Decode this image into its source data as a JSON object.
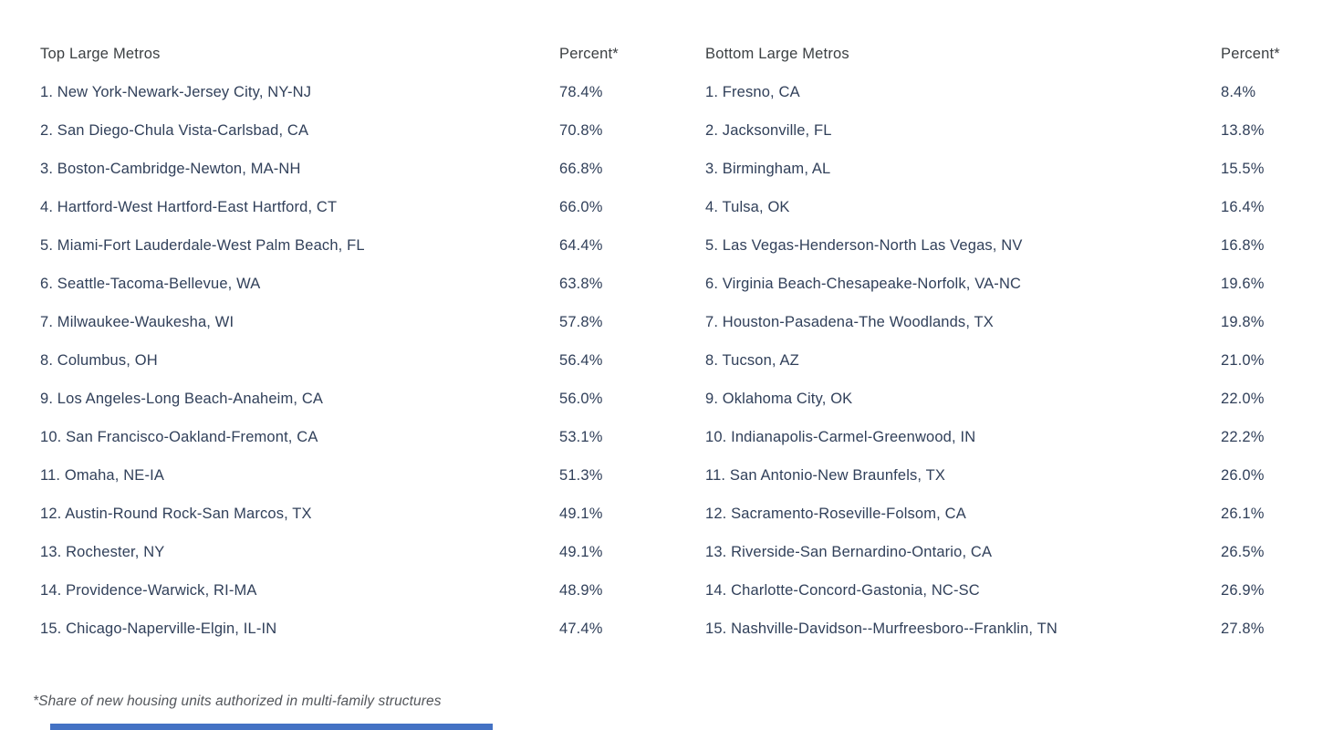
{
  "colors": {
    "background": "#ffffff",
    "row_text": "#31405a",
    "header_text": "#3c4043",
    "footnote_text": "#53565b",
    "accent_bar": "#4472c4"
  },
  "footnote": "*Share of new housing units authorized in multi-family structures",
  "tables": [
    {
      "header_metros": "Top Large Metros",
      "header_percent": "Percent*",
      "rows": [
        {
          "label": "1. New York-Newark-Jersey City, NY-NJ",
          "percent": "78.4%"
        },
        {
          "label": "2. San Diego-Chula Vista-Carlsbad, CA",
          "percent": "70.8%"
        },
        {
          "label": "3. Boston-Cambridge-Newton, MA-NH",
          "percent": "66.8%"
        },
        {
          "label": "4. Hartford-West Hartford-East Hartford, CT",
          "percent": "66.0%"
        },
        {
          "label": "5. Miami-Fort Lauderdale-West Palm Beach, FL",
          "percent": "64.4%"
        },
        {
          "label": "6. Seattle-Tacoma-Bellevue, WA",
          "percent": "63.8%"
        },
        {
          "label": "7. Milwaukee-Waukesha, WI",
          "percent": "57.8%"
        },
        {
          "label": "8. Columbus, OH",
          "percent": "56.4%"
        },
        {
          "label": "9. Los Angeles-Long Beach-Anaheim, CA",
          "percent": "56.0%"
        },
        {
          "label": "10. San Francisco-Oakland-Fremont, CA",
          "percent": "53.1%"
        },
        {
          "label": "11. Omaha, NE-IA",
          "percent": "51.3%"
        },
        {
          "label": "12. Austin-Round Rock-San Marcos, TX",
          "percent": "49.1%"
        },
        {
          "label": "13. Rochester, NY",
          "percent": "49.1%"
        },
        {
          "label": "14. Providence-Warwick, RI-MA",
          "percent": "48.9%"
        },
        {
          "label": "15. Chicago-Naperville-Elgin, IL-IN",
          "percent": "47.4%"
        }
      ]
    },
    {
      "header_metros": "Bottom Large Metros",
      "header_percent": "Percent*",
      "rows": [
        {
          "label": "1. Fresno, CA",
          "percent": "8.4%"
        },
        {
          "label": "2. Jacksonville, FL",
          "percent": "13.8%"
        },
        {
          "label": "3. Birmingham, AL",
          "percent": "15.5%"
        },
        {
          "label": "4. Tulsa, OK",
          "percent": "16.4%"
        },
        {
          "label": "5. Las Vegas-Henderson-North Las Vegas, NV",
          "percent": "16.8%"
        },
        {
          "label": "6. Virginia Beach-Chesapeake-Norfolk, VA-NC",
          "percent": "19.6%"
        },
        {
          "label": "7. Houston-Pasadena-The Woodlands, TX",
          "percent": "19.8%"
        },
        {
          "label": "8. Tucson, AZ",
          "percent": "21.0%"
        },
        {
          "label": "9. Oklahoma City, OK",
          "percent": "22.0%"
        },
        {
          "label": "10. Indianapolis-Carmel-Greenwood, IN",
          "percent": "22.2%"
        },
        {
          "label": "11. San Antonio-New Braunfels, TX",
          "percent": "26.0%"
        },
        {
          "label": "12. Sacramento-Roseville-Folsom, CA",
          "percent": "26.1%"
        },
        {
          "label": "13. Riverside-San Bernardino-Ontario, CA",
          "percent": "26.5%"
        },
        {
          "label": "14. Charlotte-Concord-Gastonia, NC-SC",
          "percent": "26.9%"
        },
        {
          "label": "15. Nashville-Davidson--Murfreesboro--Franklin, TN",
          "percent": "27.8%"
        }
      ]
    }
  ],
  "chart_data": {
    "type": "table",
    "footnote": "*Share of new housing units authorized in multi-family structures",
    "tables": [
      {
        "title": "Top Large Metros",
        "value_column": "Percent*",
        "ranks": [
          1,
          2,
          3,
          4,
          5,
          6,
          7,
          8,
          9,
          10,
          11,
          12,
          13,
          14,
          15
        ],
        "metros": [
          "New York-Newark-Jersey City, NY-NJ",
          "San Diego-Chula Vista-Carlsbad, CA",
          "Boston-Cambridge-Newton, MA-NH",
          "Hartford-West Hartford-East Hartford, CT",
          "Miami-Fort Lauderdale-West Palm Beach, FL",
          "Seattle-Tacoma-Bellevue, WA",
          "Milwaukee-Waukesha, WI",
          "Columbus, OH",
          "Los Angeles-Long Beach-Anaheim, CA",
          "San Francisco-Oakland-Fremont, CA",
          "Omaha, NE-IA",
          "Austin-Round Rock-San Marcos, TX",
          "Rochester, NY",
          "Providence-Warwick, RI-MA",
          "Chicago-Naperville-Elgin, IL-IN"
        ],
        "values": [
          78.4,
          70.8,
          66.8,
          66.0,
          64.4,
          63.8,
          57.8,
          56.4,
          56.0,
          53.1,
          51.3,
          49.1,
          49.1,
          48.9,
          47.4
        ]
      },
      {
        "title": "Bottom Large Metros",
        "value_column": "Percent*",
        "ranks": [
          1,
          2,
          3,
          4,
          5,
          6,
          7,
          8,
          9,
          10,
          11,
          12,
          13,
          14,
          15
        ],
        "metros": [
          "Fresno, CA",
          "Jacksonville, FL",
          "Birmingham, AL",
          "Tulsa, OK",
          "Las Vegas-Henderson-North Las Vegas, NV",
          "Virginia Beach-Chesapeake-Norfolk, VA-NC",
          "Houston-Pasadena-The Woodlands, TX",
          "Tucson, AZ",
          "Oklahoma City, OK",
          "Indianapolis-Carmel-Greenwood, IN",
          "San Antonio-New Braunfels, TX",
          "Sacramento-Roseville-Folsom, CA",
          "Riverside-San Bernardino-Ontario, CA",
          "Charlotte-Concord-Gastonia, NC-SC",
          "Nashville-Davidson--Murfreesboro--Franklin, TN"
        ],
        "values": [
          8.4,
          13.8,
          15.5,
          16.4,
          16.8,
          19.6,
          19.8,
          21.0,
          22.0,
          22.2,
          26.0,
          26.1,
          26.5,
          26.9,
          27.8
        ]
      }
    ]
  }
}
